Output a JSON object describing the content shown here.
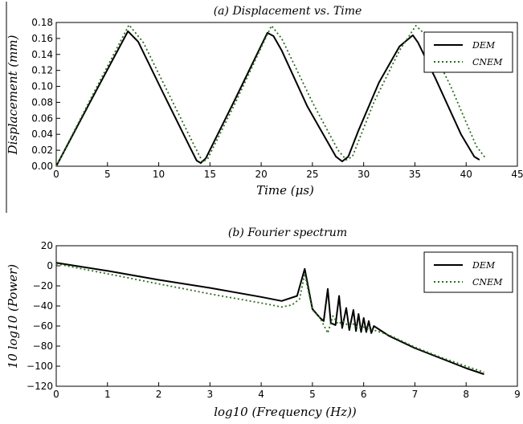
{
  "chart_data": [
    {
      "type": "line",
      "title": "(a) Displacement vs. Time",
      "xlabel": "Time (μs)",
      "ylabel": "Displacement (mm)",
      "xlim": [
        0,
        45
      ],
      "ylim": [
        0,
        0.18
      ],
      "xticks": [
        "0",
        "5",
        "10",
        "15",
        "20",
        "25",
        "30",
        "35",
        "40",
        "45"
      ],
      "yticks": [
        "0.00",
        "0.02",
        "0.04",
        "0.06",
        "0.08",
        "0.10",
        "0.12",
        "0.14",
        "0.16",
        "0.18"
      ],
      "grid": false,
      "legend_position": "top-right",
      "series": [
        {
          "name": "DEM",
          "color": "#000000",
          "style": "solid",
          "x": [
            0,
            3.5,
            7.0,
            8.0,
            10.5,
            13.0,
            13.7,
            14.1,
            14.6,
            17.5,
            20.6,
            21.2,
            22.0,
            24.5,
            27.3,
            27.9,
            28.5,
            29.5,
            31.5,
            33.5,
            34.8,
            35.3,
            37.0,
            39.5,
            40.8,
            41.3
          ],
          "y": [
            0.0,
            0.085,
            0.169,
            0.156,
            0.09,
            0.025,
            0.007,
            0.004,
            0.01,
            0.085,
            0.167,
            0.163,
            0.145,
            0.075,
            0.012,
            0.006,
            0.012,
            0.045,
            0.105,
            0.15,
            0.164,
            0.155,
            0.11,
            0.04,
            0.012,
            0.008
          ]
        },
        {
          "name": "CNEM",
          "color": "#2e6b1e",
          "style": "dotted",
          "x": [
            0,
            3.5,
            7.1,
            8.5,
            11.0,
            13.5,
            14.3,
            14.8,
            17.5,
            21.0,
            22.0,
            25.0,
            27.5,
            28.3,
            28.9,
            31.0,
            33.5,
            35.1,
            36.0,
            38.5,
            41.0,
            41.9
          ],
          "y": [
            0.0,
            0.088,
            0.177,
            0.155,
            0.09,
            0.025,
            0.005,
            0.01,
            0.08,
            0.176,
            0.16,
            0.08,
            0.02,
            0.008,
            0.012,
            0.08,
            0.145,
            0.176,
            0.165,
            0.1,
            0.025,
            0.01
          ]
        }
      ]
    },
    {
      "type": "line",
      "title": "(b) Fourier spectrum",
      "xlabel": "log10 (Frequency (Hz))",
      "ylabel": "10 log10 (Power)",
      "xlim": [
        0,
        9
      ],
      "ylim": [
        -120,
        20
      ],
      "xticks": [
        "0",
        "1",
        "2",
        "3",
        "4",
        "5",
        "6",
        "7",
        "8",
        "9"
      ],
      "yticks": [
        "20",
        "0",
        "−20",
        "−40",
        "−60",
        "−80",
        "−100",
        "−120"
      ],
      "grid": false,
      "legend_position": "top-right",
      "series": [
        {
          "name": "DEM",
          "color": "#000000",
          "style": "solid",
          "x": [
            0,
            1,
            2,
            3,
            4,
            4.4,
            4.7,
            4.85,
            5.0,
            5.15,
            5.22,
            5.3,
            5.36,
            5.45,
            5.52,
            5.58,
            5.66,
            5.72,
            5.8,
            5.85,
            5.9,
            5.95,
            6.0,
            6.05,
            6.1,
            6.15,
            6.2,
            6.5,
            7.0,
            7.5,
            8.0,
            8.35
          ],
          "y": [
            3,
            -5,
            -14,
            -22,
            -31,
            -35,
            -30,
            -3,
            -43,
            -52,
            -55,
            -23,
            -57,
            -59,
            -30,
            -62,
            -42,
            -64,
            -44,
            -65,
            -48,
            -66,
            -52,
            -66,
            -55,
            -67,
            -60,
            -70,
            -82,
            -92,
            -102,
            -108
          ]
        },
        {
          "name": "CNEM",
          "color": "#2e6b1e",
          "style": "dotted",
          "x": [
            0,
            1,
            2,
            3,
            4,
            4.4,
            4.6,
            4.75,
            4.85,
            5.0,
            5.15,
            5.3,
            5.4,
            5.5,
            5.6,
            5.7,
            5.8,
            5.9,
            6.0,
            6.1,
            6.2,
            6.5,
            7.0,
            7.5,
            8.0,
            8.35
          ],
          "y": [
            2,
            -8,
            -18,
            -28,
            -37,
            -41,
            -39,
            -33,
            -8,
            -44,
            -52,
            -67,
            -50,
            -58,
            -55,
            -60,
            -58,
            -62,
            -61,
            -63,
            -64,
            -69,
            -81,
            -91,
            -100,
            -106
          ]
        }
      ]
    }
  ]
}
